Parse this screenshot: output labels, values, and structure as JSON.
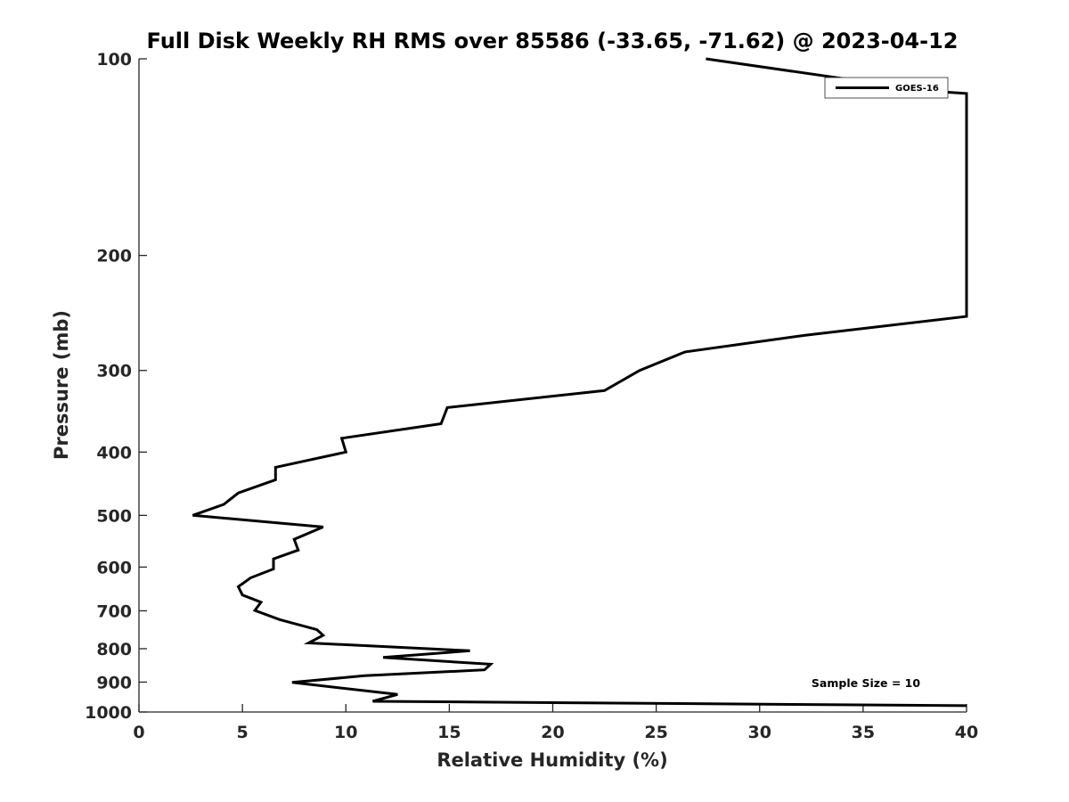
{
  "chart_data": {
    "type": "line",
    "title": "Full Disk Weekly RH RMS over 85586 (-33.65, -71.62) @ 2023-04-12",
    "xlabel": "Relative Humidity (%)",
    "ylabel": "Pressure (mb)",
    "xlim": [
      0,
      40
    ],
    "ylim": [
      100,
      1000
    ],
    "yscale": "log",
    "yreversed": true,
    "grid": false,
    "legend_position": "top-right",
    "x_ticks": [
      0,
      5,
      10,
      15,
      20,
      25,
      30,
      35,
      40
    ],
    "x_tick_labels": [
      "0",
      "5",
      "10",
      "15",
      "20",
      "25",
      "30",
      "35",
      "40"
    ],
    "y_ticks": [
      100,
      200,
      300,
      400,
      500,
      600,
      700,
      800,
      900,
      1000
    ],
    "y_tick_labels": [
      "100",
      "200",
      "300",
      "400",
      "500",
      "600",
      "700",
      "800",
      "900",
      "1000"
    ],
    "annotation": "Sample Size = 10",
    "series": [
      {
        "name": "GOES-16",
        "color": "#000000",
        "points": [
          {
            "x": 27.4,
            "y": 100
          },
          {
            "x": 38.2,
            "y": 112
          },
          {
            "x": 40.0,
            "y": 113
          },
          {
            "x": 40.0,
            "y": 248
          },
          {
            "x": 32.2,
            "y": 265
          },
          {
            "x": 26.4,
            "y": 281
          },
          {
            "x": 24.2,
            "y": 300
          },
          {
            "x": 22.5,
            "y": 322
          },
          {
            "x": 14.9,
            "y": 342
          },
          {
            "x": 14.6,
            "y": 362
          },
          {
            "x": 9.8,
            "y": 381
          },
          {
            "x": 10.0,
            "y": 400
          },
          {
            "x": 6.6,
            "y": 422
          },
          {
            "x": 6.6,
            "y": 441
          },
          {
            "x": 4.8,
            "y": 462
          },
          {
            "x": 4.1,
            "y": 481
          },
          {
            "x": 2.6,
            "y": 500
          },
          {
            "x": 8.9,
            "y": 521
          },
          {
            "x": 7.5,
            "y": 544
          },
          {
            "x": 7.7,
            "y": 565
          },
          {
            "x": 6.5,
            "y": 583
          },
          {
            "x": 6.5,
            "y": 604
          },
          {
            "x": 5.4,
            "y": 623
          },
          {
            "x": 4.8,
            "y": 643
          },
          {
            "x": 5.0,
            "y": 662
          },
          {
            "x": 5.9,
            "y": 679
          },
          {
            "x": 5.6,
            "y": 699
          },
          {
            "x": 6.8,
            "y": 722
          },
          {
            "x": 8.6,
            "y": 748
          },
          {
            "x": 8.9,
            "y": 763
          },
          {
            "x": 8.2,
            "y": 784
          },
          {
            "x": 16.0,
            "y": 806
          },
          {
            "x": 11.8,
            "y": 825
          },
          {
            "x": 17.0,
            "y": 845
          },
          {
            "x": 16.7,
            "y": 862
          },
          {
            "x": 10.9,
            "y": 880
          },
          {
            "x": 7.4,
            "y": 901
          },
          {
            "x": 12.5,
            "y": 940
          },
          {
            "x": 11.3,
            "y": 963
          },
          {
            "x": 40.0,
            "y": 978
          }
        ]
      }
    ]
  }
}
